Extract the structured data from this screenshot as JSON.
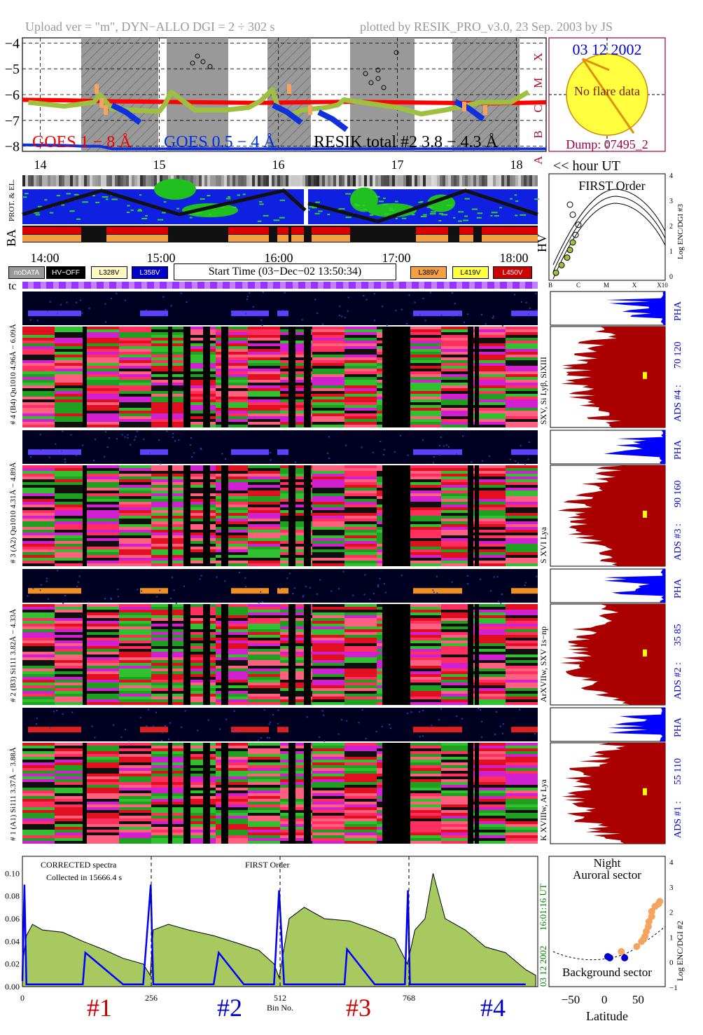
{
  "header": {
    "upload": "Upload ver = \"m\", DYN−ALLO DGI =   2 ÷ 302 s",
    "plotted": "plotted by RESIK_PRO_v3.0, 23 Sep. 2003 by JS"
  },
  "goes_panel": {
    "y_ticks": [
      "−4",
      "−5",
      "−6",
      "−7",
      "−8"
    ],
    "class_labels": [
      "X",
      "M",
      "C",
      "B",
      "A"
    ],
    "x_ticks": [
      "14",
      "15",
      "16",
      "17",
      "18"
    ],
    "labels": {
      "goes_long": "GOES 1 − 8 Å",
      "goes_short": "GOES 0.5 − 4 Å",
      "resik": "RESIK total #2  3.8 − 4.3 Å"
    }
  },
  "sun_box": {
    "date": "03 12 2002",
    "no_flare": "No flare data",
    "dump": "Dump: 07495_2"
  },
  "hour_ut": "<< hour UT",
  "left_strip_labels": {
    "prot": "PROT. & EL.",
    "ba": "BA",
    "hv": "HV",
    "tc": "tc"
  },
  "time_axis": [
    "14:00",
    "15:00",
    "16:00",
    "17:00",
    "18:00"
  ],
  "legend": {
    "nodata": "noDATA",
    "hvoff": "HV−OFF",
    "v328": "L328V",
    "v358": "L358V",
    "start_time": "Start Time (03−Dec−02 13:50:34)",
    "v389": "L389V",
    "v419": "L419V",
    "v450": "L450V"
  },
  "colors": {
    "goes_long": "#ff0000",
    "goes_short": "#1030e0",
    "resik": "#9fbf3f",
    "pha": "#0000ff",
    "ads": "#aa0000",
    "sun": "#ffff40",
    "accent_blue": "#0000cc",
    "accent_red": "#cc0000",
    "sector_dot_orange": "#f4a460",
    "sector_dot_blue": "#0000cc"
  },
  "first_order": {
    "title": "FIRST Order",
    "ylabel": "Log ENC/DGI #3",
    "xlabels": [
      "B",
      "C",
      "M",
      "X",
      "X10"
    ],
    "y_ticks": [
      "0",
      "1",
      "2",
      "3",
      "4"
    ]
  },
  "channels": [
    {
      "left": "# 4 (B4) Qu1010 4.96Å − 6.09Å",
      "right_rot": "SXV, Si Lyβ, SiXIII",
      "ads": "ADS #4 :",
      "range": "70 120",
      "pha": "PHA"
    },
    {
      "left": "# 3 (A2) Qu1010 4.31Å − 4.89Å",
      "right_rot": "S XVI Lya",
      "ads": "ADS #3 :",
      "range": "90 160",
      "pha": "PHA"
    },
    {
      "left": "# 2 (B3) Si111 3.82Å − 4.33Å",
      "right_rot": "ArXVIIw, SXV 1s−np",
      "ads": "ADS #2 :",
      "range": "35 85",
      "pha": "PHA"
    },
    {
      "left": "# 1 (A1) Si111 3.37Å − 3.88Å",
      "right_rot": "K XVIIIw, Ar Lya",
      "ads": "ADS #1 :",
      "range": "55 110",
      "pha": "PHA"
    }
  ],
  "bottom_left": {
    "label1": "CORRECTED spectra",
    "label2": "Collected in 15666.4 s",
    "label3": "FIRST Order",
    "vert1": "16:01:16 UT",
    "vert2": "03 12 2002",
    "xlabel": "Bin No."
  },
  "bottom_right": {
    "label1": "Night",
    "label2": "Auroral sector",
    "label3": "Background sector",
    "ylabel": "Log ENC/DGI #2",
    "xlabel": "Latitude",
    "y_ticks": [
      "−1",
      "0",
      "1",
      "2",
      "3",
      "4"
    ],
    "x_ticks": [
      "−50",
      "0",
      "50"
    ]
  },
  "detector_labels": [
    "#1",
    "#2",
    "#3",
    "#4"
  ],
  "chart_data": [
    {
      "type": "line",
      "title": "",
      "xlabel": "hour UT",
      "ylabel": "",
      "x_range": [
        13.85,
        18.25
      ],
      "ylim": [
        -8.2,
        -3.8
      ],
      "grid": true,
      "series": [
        {
          "name": "GOES 1 − 8 Å",
          "x": [
            13.85,
            14.2,
            14.6,
            15.0,
            15.4,
            15.8,
            16.2,
            16.6,
            17.0,
            17.4,
            17.8,
            18.25
          ],
          "values": [
            -6.2,
            -6.22,
            -6.26,
            -6.28,
            -6.3,
            -6.32,
            -6.3,
            -6.28,
            -6.3,
            -6.32,
            -6.34,
            -6.3
          ]
        },
        {
          "name": "GOES 0.5 − 4 Å",
          "x": [
            13.85,
            14.2,
            14.35,
            14.5,
            14.6,
            15.0,
            15.4,
            15.8,
            16.2,
            16.6,
            17.0,
            17.4,
            17.8,
            18.25
          ],
          "values": [
            -7.95,
            -7.97,
            -8.0,
            -8.0,
            -8.1,
            -8.1,
            -8.1,
            -8.1,
            -8.1,
            -8.1,
            -8.1,
            -8.1,
            -8.1,
            -8.1
          ]
        },
        {
          "name": "RESIK total #2  3.8 − 4.3 Å",
          "x": [
            13.9,
            14.2,
            14.45,
            14.5,
            14.6,
            14.75,
            15.0,
            15.05,
            15.1,
            15.3,
            15.55,
            15.75,
            15.85,
            15.95,
            16.0,
            16.1,
            16.2,
            16.4,
            16.5,
            16.55,
            17.0,
            17.2,
            17.4,
            17.6,
            17.7,
            17.95,
            18.1
          ],
          "values": [
            -6.3,
            -6.45,
            -6.3,
            -6.0,
            -6.55,
            -6.6,
            -6.65,
            -6.35,
            -5.9,
            -6.6,
            -6.6,
            -6.5,
            -6.25,
            -5.8,
            -6.55,
            -6.8,
            -6.6,
            -6.5,
            -6.4,
            -6.2,
            -6.5,
            -6.75,
            -6.6,
            -6.4,
            -6.3,
            -6.3,
            -5.9
          ]
        }
      ]
    },
    {
      "type": "area",
      "title": "",
      "xlabel": "Bin No.",
      "ylabel": "",
      "x_ticks": [
        0,
        256,
        512,
        768
      ],
      "y_ticks": [
        0.0,
        0.02,
        0.04,
        0.06,
        0.08,
        0.1
      ],
      "xlim": [
        0,
        1024
      ],
      "ylim": [
        0,
        0.115
      ],
      "series": [
        {
          "name": "CORRECTED spectra",
          "x": [
            0,
            8,
            20,
            40,
            80,
            120,
            160,
            200,
            240,
            254,
            260,
            290,
            330,
            380,
            430,
            470,
            500,
            510,
            530,
            560,
            600,
            650,
            700,
            740,
            765,
            780,
            800,
            816,
            840,
            880,
            920,
            960,
            1000,
            1020
          ],
          "values": [
            0.02,
            0.045,
            0.055,
            0.05,
            0.048,
            0.04,
            0.033,
            0.025,
            0.02,
            0.01,
            0.05,
            0.055,
            0.05,
            0.045,
            0.038,
            0.032,
            0.02,
            0.008,
            0.06,
            0.07,
            0.06,
            0.058,
            0.05,
            0.042,
            0.02,
            0.05,
            0.06,
            0.1,
            0.06,
            0.05,
            0.035,
            0.03,
            0.015,
            0.01
          ]
        },
        {
          "name": "PHA",
          "x": [
            0,
            4,
            8,
            60,
            120,
            125,
            200,
            240,
            255,
            260,
            300,
            380,
            390,
            440,
            500,
            510,
            520,
            600,
            640,
            645,
            700,
            760,
            766,
            770,
            800,
            850,
            900,
            1000
          ],
          "values": [
            0.005,
            0.09,
            0.002,
            0.002,
            0.002,
            0.03,
            0.002,
            0.002,
            0.09,
            0.002,
            0.002,
            0.002,
            0.03,
            0.002,
            0.002,
            0.085,
            0.002,
            0.002,
            0.002,
            0.033,
            0.002,
            0.002,
            0.085,
            0.002,
            0.002,
            0.002,
            0.002,
            0.002
          ]
        }
      ]
    },
    {
      "type": "scatter",
      "title": "FIRST Order",
      "xlabel": "",
      "ylabel": "Log ENC/DGI #3",
      "x_ticks": [
        "B",
        "C",
        "M",
        "X",
        "X10"
      ],
      "ylim": [
        0,
        4
      ],
      "series": [
        {
          "name": "",
          "x": [
            -7.8,
            -7.6,
            -7.4,
            -7.3,
            -7.2,
            -7.1,
            -7.0,
            -7.2,
            -7.3
          ],
          "values": [
            0.3,
            0.6,
            0.9,
            1.2,
            1.5,
            1.8,
            2.2,
            2.6,
            3.0
          ]
        }
      ]
    },
    {
      "type": "scatter",
      "title": "",
      "xlabel": "Latitude",
      "ylabel": "Log ENC/DGI #2",
      "x_ticks": [
        -50,
        0,
        50
      ],
      "y_ticks": [
        -1,
        0,
        1,
        2,
        3,
        4
      ],
      "ylim": [
        -1,
        4.2
      ],
      "series": [
        {
          "name": "Auroral sector",
          "x": [
            25,
            48,
            55,
            58,
            60,
            62,
            65,
            66,
            70,
            70,
            75,
            80,
            82
          ],
          "values": [
            0.4,
            0.6,
            0.8,
            0.9,
            1.0,
            1.2,
            1.4,
            1.6,
            2.0,
            1.8,
            2.2,
            2.3,
            2.4
          ]
        },
        {
          "name": "Background sector",
          "x": [
            5,
            8,
            30
          ],
          "values": [
            0.2,
            0.15,
            0.15
          ]
        }
      ]
    }
  ]
}
